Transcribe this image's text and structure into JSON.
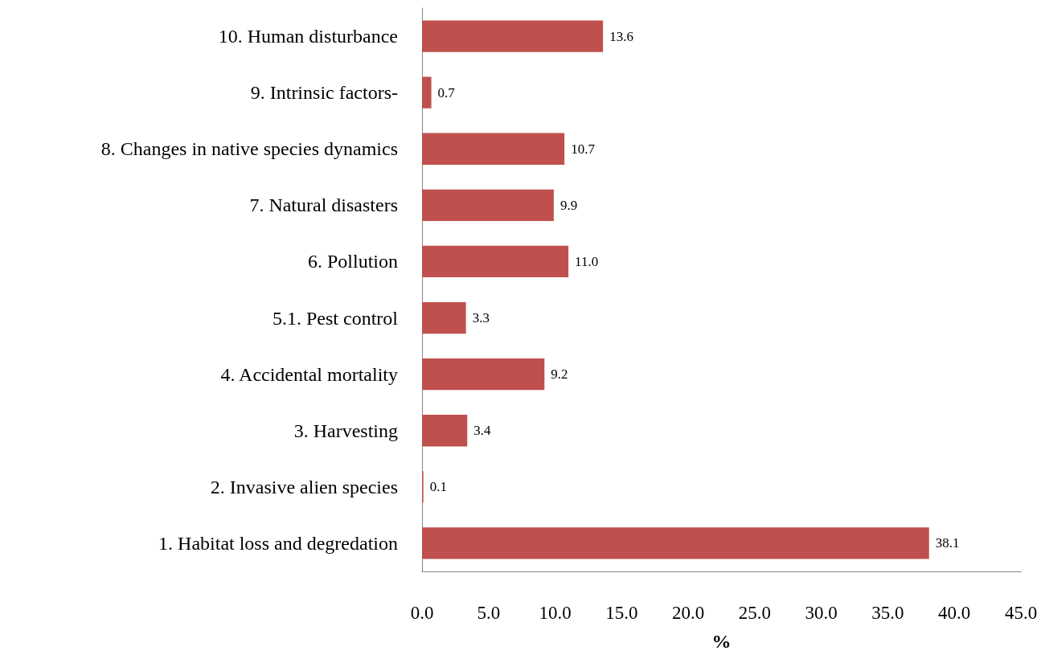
{
  "chart_data": {
    "type": "bar",
    "orientation": "horizontal",
    "xlabel": "%",
    "categories": [
      "10. Human disturbance",
      "9. Intrinsic factors-",
      "8. Changes in native species dynamics",
      "7. Natural disasters",
      "6. Pollution",
      "5.1. Pest control",
      "4. Accidental mortality",
      "3. Harvesting",
      "2. Invasive alien species",
      "1. Habitat loss and degredation"
    ],
    "values": [
      13.6,
      0.7,
      10.7,
      9.9,
      11.0,
      3.3,
      9.2,
      3.4,
      0.1,
      38.1
    ],
    "value_labels": [
      "13.6",
      "0.7",
      "10.7",
      "9.9",
      "11.0",
      "3.3",
      "9.2",
      "3.4",
      "0.1",
      "38.1"
    ],
    "color": "#c0504d",
    "xlim": [
      0,
      45
    ],
    "xticks": [
      {
        "value": 0,
        "label": "0.0"
      },
      {
        "value": 5,
        "label": "5.0"
      },
      {
        "value": 10,
        "label": "10.0"
      },
      {
        "value": 15,
        "label": "15.0"
      },
      {
        "value": 20,
        "label": "20.0"
      },
      {
        "value": 25,
        "label": "25.0"
      },
      {
        "value": 30,
        "label": "30.0"
      },
      {
        "value": 35,
        "label": "35.0"
      },
      {
        "value": 40,
        "label": "40.0"
      },
      {
        "value": 45,
        "label": "45.0"
      }
    ],
    "grid": false
  }
}
